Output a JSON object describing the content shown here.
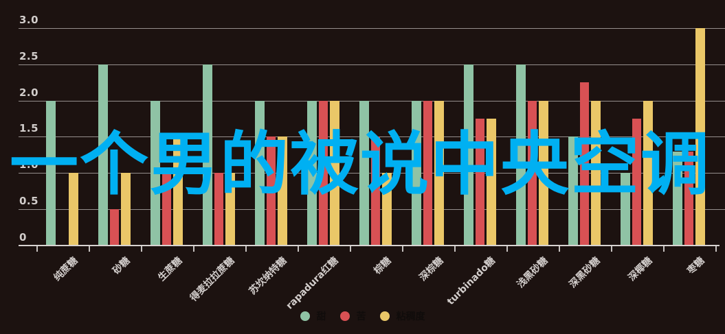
{
  "overlay_text": "一个男的被说中央空调",
  "colors": {
    "background": "#1c1210",
    "sweet": "#8fc3a5",
    "bitter": "#d85154",
    "viscosity": "#eac768",
    "overlay_text": "#00b0f2",
    "gridline": "#96908e",
    "axis_line": "#d8d3d1",
    "tick_mark": "#c7c2c0",
    "axis_label": "#d2cdcb",
    "legend_text": "#100c0b"
  },
  "chart_data": {
    "type": "bar",
    "title": "",
    "xlabel": "",
    "ylabel": "",
    "categories": [
      "纯蔗糖",
      "砂糖",
      "生蔗糖",
      "得麦拉拉蔗糖",
      "苏坎纳特糖",
      "rapadura红糖",
      "棕糖",
      "深棕糖",
      "turbinado糖",
      "浅黑砂糖",
      "深黑砂糖",
      "深椰糖",
      "枣糖"
    ],
    "series": [
      {
        "name": "甜",
        "color": "#8fc3a5",
        "values": [
          2.0,
          2.5,
          2.0,
          2.5,
          2.0,
          2.0,
          2.0,
          2.0,
          2.5,
          2.5,
          1.5,
          1.0,
          1.3
        ]
      },
      {
        "name": "苦",
        "color": "#d85154",
        "values": [
          0,
          0.5,
          1.0,
          1.0,
          1.5,
          2.0,
          1.5,
          2.0,
          1.75,
          2.0,
          2.25,
          1.75,
          1.3
        ]
      },
      {
        "name": "粘稠度",
        "color": "#eac768",
        "values": [
          1.0,
          1.0,
          1.5,
          1.0,
          1.5,
          2.0,
          1.0,
          2.0,
          1.75,
          2.0,
          2.0,
          2.0,
          3.0
        ]
      }
    ],
    "ylim": [
      0,
      3.0
    ],
    "yticks": [
      {
        "label": "0",
        "value": 0
      },
      {
        "label": "0.5",
        "value": 0.5
      },
      {
        "label": "1.0",
        "value": 1.0
      },
      {
        "label": "1.5",
        "value": 1.5
      },
      {
        "label": "2.0",
        "value": 2.0
      },
      {
        "label": "2.5",
        "value": 2.5
      },
      {
        "label": "3.0",
        "value": 3.0
      }
    ],
    "grid": true,
    "legend_position": "bottom-center",
    "x_label_rotation_deg": -45
  }
}
